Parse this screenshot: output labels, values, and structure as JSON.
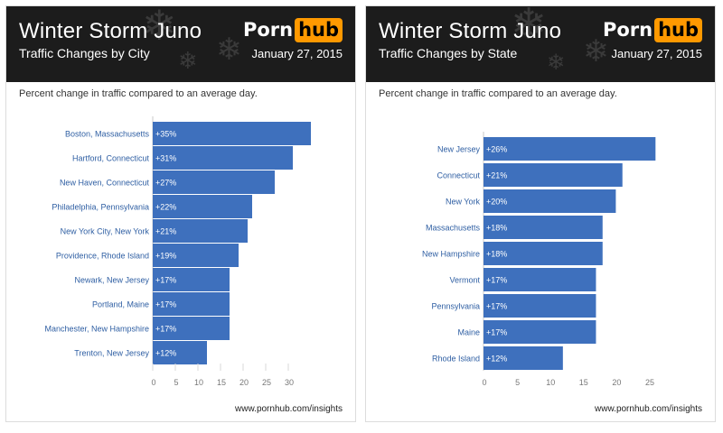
{
  "colors": {
    "bar": "#3e70bd",
    "header_bg": "#1c1c1c",
    "logo_accent": "#ff9900",
    "axis_label": "#2f5fa3"
  },
  "icons": {
    "header_snowflake": "snowflake-icon"
  },
  "panels": [
    {
      "title": "Winter Storm Juno",
      "subtitle": "Traffic Changes by City",
      "logo_left": "Porn",
      "logo_right": "hub",
      "date": "January 27, 2015",
      "caption": "Percent change in traffic compared to an average day.",
      "footer": "www.pornhub.com/insights"
    },
    {
      "title": "Winter Storm Juno",
      "subtitle": "Traffic Changes by State",
      "logo_left": "Porn",
      "logo_right": "hub",
      "date": "January 27, 2015",
      "caption": "Percent change in traffic compared to an average day.",
      "footer": "www.pornhub.com/insights"
    }
  ],
  "chart_data": [
    {
      "type": "bar",
      "orientation": "horizontal",
      "categories": [
        "Boston, Massachusetts",
        "Hartford, Connecticut",
        "New Haven, Connecticut",
        "Philadelphia, Pennsylvania",
        "New York City, New York",
        "Providence, Rhode Island",
        "Newark, New Jersey",
        "Portland, Maine",
        "Manchester, New Hampshire",
        "Trenton, New Jersey"
      ],
      "values": [
        35,
        31,
        27,
        22,
        21,
        19,
        17,
        17,
        17,
        12
      ],
      "labels": [
        "+35%",
        "+31%",
        "+27%",
        "+22%",
        "+21%",
        "+19%",
        "+17%",
        "+17%",
        "+17%",
        "+12%"
      ],
      "xticks": [
        0,
        5,
        10,
        15,
        20,
        25,
        30
      ],
      "xlim": [
        0,
        35
      ],
      "grid": false
    },
    {
      "type": "bar",
      "orientation": "horizontal",
      "categories": [
        "New Jersey",
        "Connecticut",
        "New York",
        "Massachusetts",
        "New Hampshire",
        "Vermont",
        "Pennsylvania",
        "Maine",
        "Rhode Island"
      ],
      "values": [
        26,
        21,
        20,
        18,
        18,
        17,
        17,
        17,
        12
      ],
      "labels": [
        "+26%",
        "+21%",
        "+20%",
        "+18%",
        "+18%",
        "+17%",
        "+17%",
        "+17%",
        "+12%"
      ],
      "xticks": [
        0,
        5,
        10,
        15,
        20,
        25
      ],
      "xlim": [
        0,
        26
      ],
      "grid": false
    }
  ]
}
